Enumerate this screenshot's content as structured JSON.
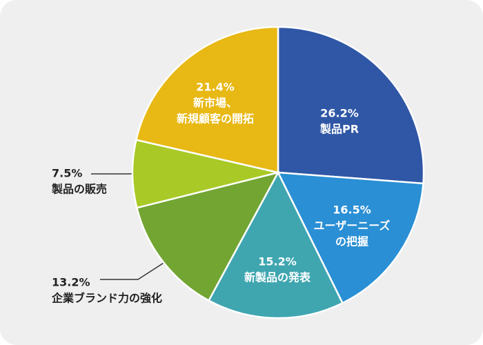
{
  "chart_data": {
    "type": "pie",
    "categories": [
      [
        "製品PR"
      ],
      [
        "ユーザーニーズ",
        "の把握"
      ],
      [
        "新製品の発表"
      ],
      [
        "企業ブランド力の強化"
      ],
      [
        "製品の販売"
      ],
      [
        "新市場、",
        "新規顧客の開拓"
      ]
    ],
    "values": [
      26.2,
      16.5,
      15.2,
      13.2,
      7.5,
      21.4
    ],
    "value_labels": [
      "26.2%",
      "16.5%",
      "15.2%",
      "13.2%",
      "7.5%",
      "21.4%"
    ],
    "colors": [
      "#2f57a6",
      "#2a8fd4",
      "#3fa6b0",
      "#72a532",
      "#a9c926",
      "#e8b814"
    ]
  }
}
